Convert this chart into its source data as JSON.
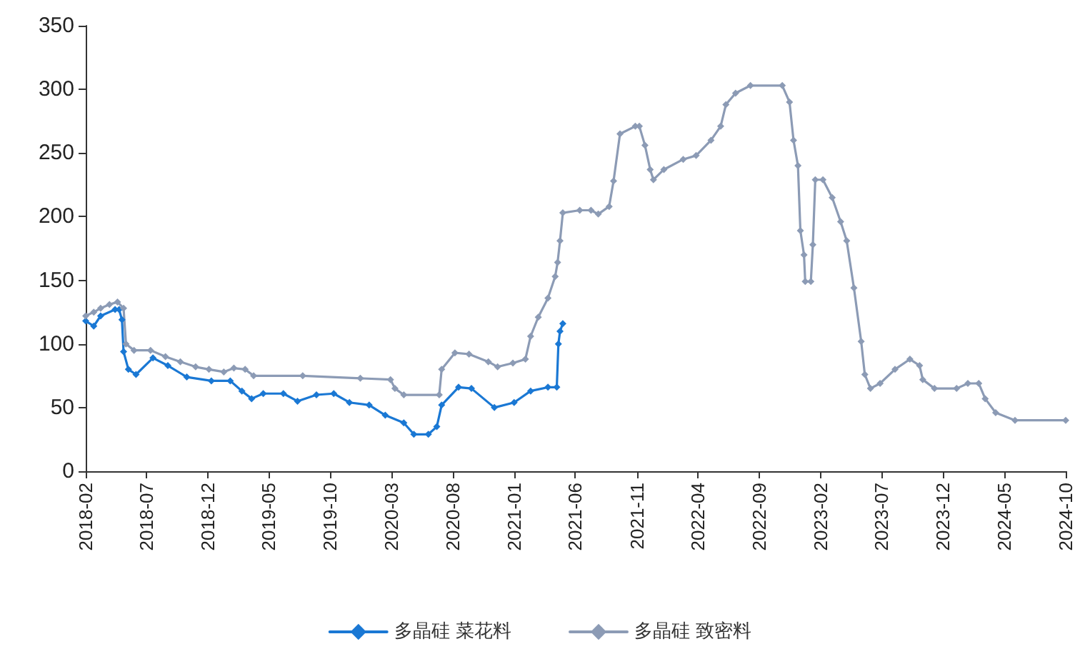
{
  "chart_data": {
    "type": "line",
    "marker": "diamond",
    "line_style": "solid",
    "grid": false,
    "legend": "bottom",
    "xlim": [
      "2018-02",
      "2024-10"
    ],
    "xticks": [
      "2018-02",
      "2018-07",
      "2018-12",
      "2019-05",
      "2019-10",
      "2020-03",
      "2020-08",
      "2021-01",
      "2021-06",
      "2021-11",
      "2022-04",
      "2022-09",
      "2023-02",
      "2023-07",
      "2023-12",
      "2024-05",
      "2024-10"
    ],
    "ylim": [
      0,
      350
    ],
    "yticks": [
      0,
      50,
      100,
      150,
      200,
      250,
      300,
      350
    ],
    "series": [
      {
        "name": "多晶硅 菜花料",
        "color": "#1a78d4",
        "x": [
          "2018-02-01",
          "2018-02-21",
          "2018-03-10",
          "2018-04-15",
          "2018-04-25",
          "2018-05-02",
          "2018-05-06",
          "2018-05-18",
          "2018-06-06",
          "2018-07-18",
          "2018-08-24",
          "2018-10-10",
          "2018-12-10",
          "2019-01-26",
          "2019-02-24",
          "2019-03-20",
          "2019-04-18",
          "2019-06-07",
          "2019-07-12",
          "2019-08-28",
          "2019-10-10",
          "2019-11-18",
          "2020-01-06",
          "2020-02-15",
          "2020-04-01",
          "2020-04-26",
          "2020-06-01",
          "2020-06-22",
          "2020-07-04",
          "2020-08-15",
          "2020-09-16",
          "2020-11-12",
          "2020-12-31",
          "2021-02-10",
          "2021-03-25",
          "2021-04-16",
          "2021-04-20",
          "2021-04-24",
          "2021-05-01"
        ],
        "values": [
          118,
          114,
          122,
          127,
          127,
          119,
          94,
          80,
          76,
          89,
          83,
          74,
          71,
          71,
          63,
          57,
          61,
          61,
          55,
          60,
          61,
          54,
          52,
          44,
          38,
          29,
          29,
          35,
          52,
          66,
          65,
          50,
          54,
          63,
          66,
          66,
          100,
          110,
          116
        ]
      },
      {
        "name": "多晶硅 致密料",
        "color": "#8c9bb5",
        "x": [
          "2018-02-01",
          "2018-02-21",
          "2018-03-10",
          "2018-04-01",
          "2018-04-21",
          "2018-05-06",
          "2018-05-12",
          "2018-06-01",
          "2018-07-12",
          "2018-08-18",
          "2018-09-24",
          "2018-11-01",
          "2018-12-04",
          "2019-01-10",
          "2019-02-04",
          "2019-03-04",
          "2019-03-25",
          "2019-07-25",
          "2019-12-15",
          "2020-02-28",
          "2020-03-10",
          "2020-04-01",
          "2020-06-28",
          "2020-07-04",
          "2020-08-06",
          "2020-09-10",
          "2020-10-28",
          "2020-11-20",
          "2020-12-28",
          "2021-01-28",
          "2021-02-10",
          "2021-03-01",
          "2021-03-25",
          "2021-04-12",
          "2021-04-18",
          "2021-04-24",
          "2021-05-01",
          "2021-06-12",
          "2021-07-10",
          "2021-07-28",
          "2021-08-24",
          "2021-09-04",
          "2021-09-20",
          "2021-10-28",
          "2021-11-07",
          "2021-11-21",
          "2021-12-04",
          "2021-12-12",
          "2022-01-07",
          "2022-02-24",
          "2022-03-28",
          "2022-05-04",
          "2022-05-28",
          "2022-06-10",
          "2022-07-04",
          "2022-08-10",
          "2022-10-28",
          "2022-11-15",
          "2022-11-25",
          "2022-12-06",
          "2022-12-12",
          "2022-12-21",
          "2022-12-24",
          "2023-01-07",
          "2023-01-12",
          "2023-01-18",
          "2023-02-06",
          "2023-03-01",
          "2023-03-22",
          "2023-04-06",
          "2023-04-24",
          "2023-05-12",
          "2023-05-21",
          "2023-06-04",
          "2023-06-28",
          "2023-08-04",
          "2023-09-10",
          "2023-10-04",
          "2023-10-12",
          "2023-11-10",
          "2024-01-04",
          "2024-02-01",
          "2024-02-28",
          "2024-03-15",
          "2024-04-10",
          "2024-05-28",
          "2024-10-01"
        ],
        "values": [
          122,
          125,
          128,
          131,
          133,
          128,
          100,
          95,
          95,
          90,
          86,
          82,
          80,
          78,
          81,
          80,
          75,
          75,
          73,
          72,
          65,
          60,
          60,
          80,
          93,
          92,
          86,
          82,
          85,
          88,
          106,
          121,
          136,
          153,
          164,
          181,
          203,
          205,
          205,
          202,
          208,
          228,
          265,
          271,
          271,
          256,
          237,
          229,
          237,
          245,
          248,
          260,
          271,
          288,
          297,
          303,
          303,
          290,
          260,
          240,
          189,
          170,
          149,
          149,
          178,
          229,
          229,
          215,
          196,
          181,
          144,
          102,
          76,
          65,
          69,
          80,
          88,
          83,
          72,
          65,
          65,
          69,
          69,
          57,
          46,
          40,
          40
        ]
      }
    ]
  }
}
